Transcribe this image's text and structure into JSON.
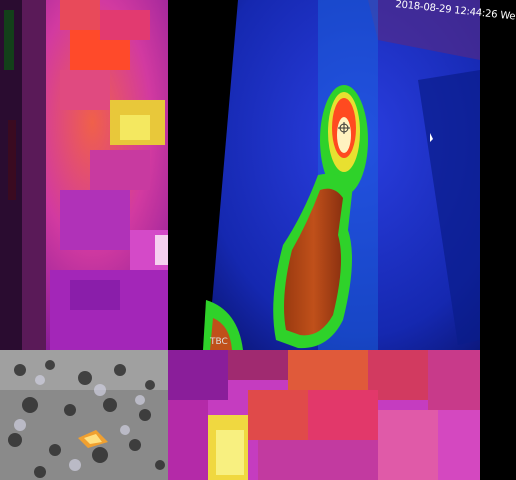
{
  "panels": {
    "top_left": {
      "description_icon": "thermal-closeup-magenta"
    },
    "top_right": {
      "timestamp": "2018-08-29 12:44:26 We",
      "corner_label": "TBC"
    },
    "bottom_left": {
      "description_icon": "aerial-terrain-grey"
    },
    "bottom_right": {
      "description_icon": "thermal-closeup-magenta"
    }
  },
  "colors": {
    "magenta": "#c53cc0",
    "hot_orange": "#ff4a20",
    "hot_yellow": "#f2e23a",
    "cold_blue": "#1a2fd0",
    "green": "#2fd22a"
  }
}
